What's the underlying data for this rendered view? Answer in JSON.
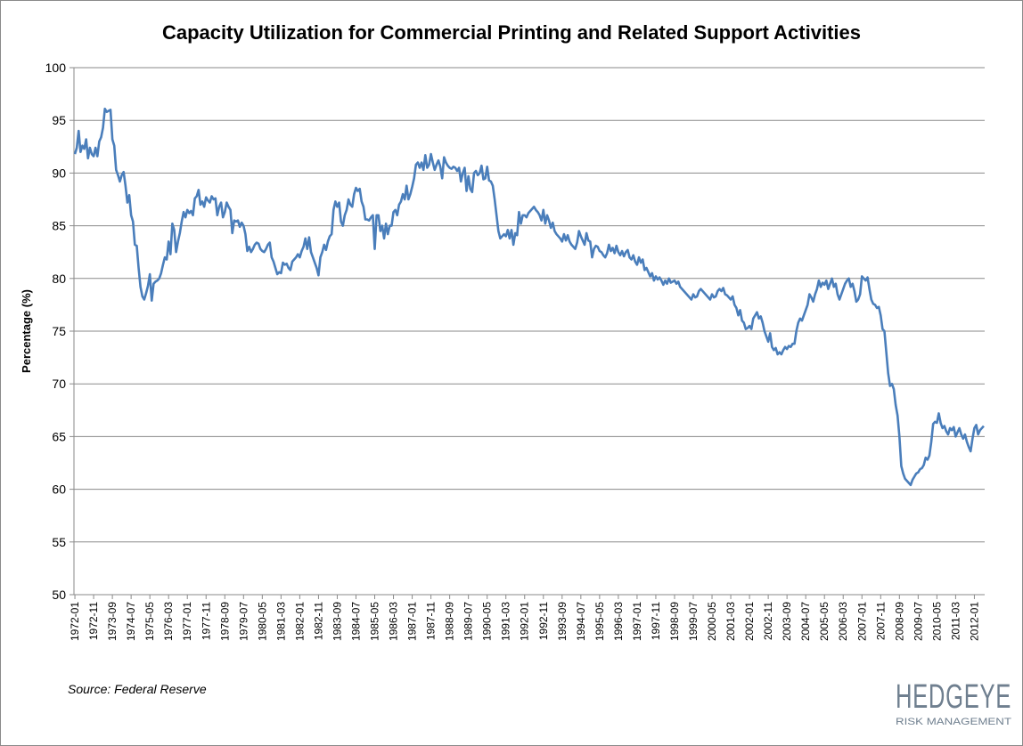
{
  "chart_data": {
    "type": "line",
    "title": "Capacity Utilization for Commercial Printing and Related Support Activities",
    "ylabel": "Percentage (%)",
    "source": "Source:  Federal Reserve",
    "logo": {
      "name": "HEDGEYE",
      "tagline": "RISK MANAGEMENT"
    },
    "ylim": [
      50,
      100
    ],
    "yticks": [
      50,
      55,
      60,
      65,
      70,
      75,
      80,
      85,
      90,
      95,
      100
    ],
    "grid": true,
    "categories": [
      "1972-01",
      null,
      null,
      null,
      null,
      null,
      null,
      null,
      null,
      null,
      "1972-11",
      null,
      null,
      null,
      null,
      null,
      null,
      null,
      null,
      null,
      "1973-09",
      null,
      null,
      null,
      null,
      null,
      null,
      null,
      null,
      null,
      "1974-07",
      null,
      null,
      null,
      null,
      null,
      null,
      null,
      null,
      null,
      "1975-05",
      null,
      null,
      null,
      null,
      null,
      null,
      null,
      null,
      null,
      "1976-03",
      null,
      null,
      null,
      null,
      null,
      null,
      null,
      null,
      null,
      "1977-01",
      null,
      null,
      null,
      null,
      null,
      null,
      null,
      null,
      null,
      "1977-11",
      null,
      null,
      null,
      null,
      null,
      null,
      null,
      null,
      null,
      "1978-09",
      null,
      null,
      null,
      null,
      null,
      null,
      null,
      null,
      null,
      "1979-07",
      null,
      null,
      null,
      null,
      null,
      null,
      null,
      null,
      null,
      "1980-05",
      null,
      null,
      null,
      null,
      null,
      null,
      null,
      null,
      null,
      "1981-03",
      null,
      null,
      null,
      null,
      null,
      null,
      null,
      null,
      null,
      "1982-01",
      null,
      null,
      null,
      null,
      null,
      null,
      null,
      null,
      null,
      "1982-11",
      null,
      null,
      null,
      null,
      null,
      null,
      null,
      null,
      null,
      "1983-09",
      null,
      null,
      null,
      null,
      null,
      null,
      null,
      null,
      null,
      "1984-07",
      null,
      null,
      null,
      null,
      null,
      null,
      null,
      null,
      null,
      "1985-05",
      null,
      null,
      null,
      null,
      null,
      null,
      null,
      null,
      null,
      "1986-03",
      null,
      null,
      null,
      null,
      null,
      null,
      null,
      null,
      null,
      "1987-01",
      null,
      null,
      null,
      null,
      null,
      null,
      null,
      null,
      null,
      "1987-11",
      null,
      null,
      null,
      null,
      null,
      null,
      null,
      null,
      null,
      "1988-09",
      null,
      null,
      null,
      null,
      null,
      null,
      null,
      null,
      null,
      "1989-07",
      null,
      null,
      null,
      null,
      null,
      null,
      null,
      null,
      null,
      "1990-05",
      null,
      null,
      null,
      null,
      null,
      null,
      null,
      null,
      null,
      "1991-03",
      null,
      null,
      null,
      null,
      null,
      null,
      null,
      null,
      null,
      "1992-01",
      null,
      null,
      null,
      null,
      null,
      null,
      null,
      null,
      null,
      "1992-11",
      null,
      null,
      null,
      null,
      null,
      null,
      null,
      null,
      null,
      "1993-09",
      null,
      null,
      null,
      null,
      null,
      null,
      null,
      null,
      null,
      "1994-07",
      null,
      null,
      null,
      null,
      null,
      null,
      null,
      null,
      null,
      "1995-05",
      null,
      null,
      null,
      null,
      null,
      null,
      null,
      null,
      null,
      "1996-03",
      null,
      null,
      null,
      null,
      null,
      null,
      null,
      null,
      null,
      "1997-01",
      null,
      null,
      null,
      null,
      null,
      null,
      null,
      null,
      null,
      "1997-11",
      null,
      null,
      null,
      null,
      null,
      null,
      null,
      null,
      null,
      "1998-09",
      null,
      null,
      null,
      null,
      null,
      null,
      null,
      null,
      null,
      "1999-07",
      null,
      null,
      null,
      null,
      null,
      null,
      null,
      null,
      null,
      "2000-05",
      null,
      null,
      null,
      null,
      null,
      null,
      null,
      null,
      null,
      "2001-03",
      null,
      null,
      null,
      null,
      null,
      null,
      null,
      null,
      null,
      "2002-01",
      null,
      null,
      null,
      null,
      null,
      null,
      null,
      null,
      null,
      "2002-11",
      null,
      null,
      null,
      null,
      null,
      null,
      null,
      null,
      null,
      "2003-09",
      null,
      null,
      null,
      null,
      null,
      null,
      null,
      null,
      null,
      "2004-07",
      null,
      null,
      null,
      null,
      null,
      null,
      null,
      null,
      null,
      "2005-05",
      null,
      null,
      null,
      null,
      null,
      null,
      null,
      null,
      null,
      "2006-03",
      null,
      null,
      null,
      null,
      null,
      null,
      null,
      null,
      null,
      "2007-01",
      null,
      null,
      null,
      null,
      null,
      null,
      null,
      null,
      null,
      "2007-11",
      null,
      null,
      null,
      null,
      null,
      null,
      null,
      null,
      null,
      "2008-09",
      null,
      null,
      null,
      null,
      null,
      null,
      null,
      null,
      null,
      "2009-07",
      null,
      null,
      null,
      null,
      null,
      null,
      null,
      null,
      null,
      "2010-05",
      null,
      null,
      null,
      null,
      null,
      null,
      null,
      null,
      null,
      "2011-03",
      null,
      null,
      null,
      null,
      null,
      null,
      null,
      null,
      null,
      "2012-01",
      null,
      null,
      null,
      null,
      null
    ],
    "series": [
      {
        "color": "#4a7ebb",
        "values": [
          91.8,
          92.4,
          94.0,
          92.0,
          92.6,
          92.3,
          93.2,
          91.4,
          92.4,
          91.8,
          91.6,
          92.4,
          91.6,
          93.0,
          93.4,
          94.3,
          96.1,
          95.8,
          95.9,
          96.0,
          93.2,
          92.6,
          90.3,
          89.8,
          89.2,
          89.8,
          90.1,
          88.8,
          87.2,
          87.9,
          86.0,
          85.4,
          83.2,
          83.1,
          81.0,
          79.2,
          78.3,
          78.0,
          78.6,
          79.3,
          80.4,
          77.9,
          79.5,
          79.7,
          79.8,
          80.0,
          80.5,
          81.3,
          82.0,
          81.8,
          83.5,
          82.3,
          85.2,
          84.6,
          82.5,
          83.5,
          84.3,
          85.4,
          86.3,
          85.8,
          86.5,
          86.2,
          86.4,
          86.0,
          87.6,
          87.8,
          88.4,
          87.0,
          87.3,
          86.8,
          87.7,
          87.4,
          87.2,
          87.8,
          87.5,
          87.6,
          86.0,
          86.8,
          87.2,
          85.8,
          86.3,
          87.2,
          86.8,
          86.5,
          84.3,
          85.5,
          85.4,
          85.5,
          84.9,
          85.3,
          85.0,
          84.2,
          82.6,
          83.0,
          82.5,
          82.8,
          83.2,
          83.4,
          83.3,
          82.8,
          82.6,
          82.5,
          82.8,
          83.2,
          83.4,
          82.0,
          81.6,
          81.0,
          80.4,
          80.6,
          80.5,
          81.5,
          81.3,
          81.4,
          81.0,
          80.8,
          81.6,
          81.8,
          82.0,
          82.3,
          82.0,
          82.6,
          83.0,
          83.8,
          82.8,
          83.9,
          82.5,
          82.0,
          81.5,
          81.0,
          80.3,
          82.0,
          82.5,
          83.2,
          82.7,
          83.5,
          84.0,
          84.2,
          86.5,
          87.3,
          86.8,
          87.2,
          85.4,
          85.0,
          86.0,
          86.5,
          87.5,
          87.0,
          86.8,
          88.0,
          88.6,
          88.3,
          88.5,
          87.3,
          86.8,
          85.6,
          85.6,
          85.5,
          85.8,
          86.0,
          82.8,
          86.0,
          86.0,
          84.5,
          85.0,
          83.8,
          85.2,
          84.2,
          85.0,
          85.0,
          86.3,
          86.5,
          86.0,
          87.0,
          87.3,
          88.0,
          87.5,
          88.8,
          87.5,
          88.0,
          88.7,
          89.5,
          90.8,
          91.0,
          90.5,
          91.0,
          90.3,
          91.7,
          90.5,
          90.8,
          91.8,
          91.0,
          90.3,
          90.8,
          91.2,
          90.6,
          89.5,
          91.5,
          91.0,
          90.7,
          90.5,
          90.4,
          90.6,
          90.5,
          90.2,
          90.5,
          89.2,
          90.0,
          90.5,
          88.3,
          89.7,
          88.5,
          88.2,
          90.0,
          90.2,
          89.8,
          90.0,
          90.7,
          89.4,
          89.5,
          90.6,
          89.3,
          89.2,
          88.8,
          87.5,
          86.0,
          84.5,
          83.8,
          84.0,
          84.2,
          84.0,
          84.6,
          83.8,
          84.6,
          83.2,
          84.3,
          84.1,
          86.3,
          85.2,
          86.0,
          86.0,
          85.8,
          86.2,
          86.4,
          86.6,
          86.8,
          86.5,
          86.3,
          86.0,
          85.5,
          86.5,
          85.2,
          86.0,
          85.5,
          84.8,
          85.3,
          84.5,
          84.2,
          84.0,
          83.8,
          83.5,
          84.2,
          83.6,
          84.1,
          83.5,
          83.2,
          83.0,
          82.8,
          83.4,
          84.5,
          84.0,
          83.6,
          83.2,
          84.3,
          83.6,
          83.5,
          82.0,
          82.8,
          83.1,
          83.0,
          82.6,
          82.5,
          82.2,
          82.0,
          82.4,
          83.2,
          82.6,
          82.9,
          82.4,
          83.1,
          82.5,
          82.2,
          82.6,
          82.1,
          82.5,
          82.7,
          82.0,
          81.8,
          82.2,
          81.6,
          81.3,
          82.0,
          81.5,
          81.8,
          80.8,
          81.0,
          80.6,
          80.2,
          80.5,
          79.8,
          80.2,
          79.9,
          80.1,
          79.8,
          79.4,
          79.8,
          79.5,
          80.0,
          79.6,
          79.7,
          79.8,
          79.5,
          79.7,
          79.2,
          79.0,
          78.8,
          78.6,
          78.4,
          78.2,
          78.0,
          78.5,
          78.2,
          78.3,
          78.8,
          79.0,
          78.8,
          78.6,
          78.4,
          78.2,
          78.0,
          78.5,
          78.2,
          78.3,
          78.8,
          79.0,
          78.8,
          79.1,
          78.5,
          78.4,
          78.2,
          78.0,
          78.3,
          77.5,
          77.2,
          76.5,
          77.0,
          76.0,
          75.8,
          75.2,
          75.3,
          75.5,
          75.2,
          76.2,
          76.5,
          76.8,
          76.2,
          76.4,
          75.8,
          75.0,
          74.5,
          74.0,
          74.8,
          73.5,
          73.2,
          73.4,
          72.8,
          73.0,
          72.8,
          73.2,
          73.5,
          73.3,
          73.6,
          73.5,
          73.8,
          73.8,
          75.0,
          75.8,
          76.2,
          76.0,
          76.5,
          77.0,
          77.5,
          78.5,
          78.2,
          77.8,
          78.5,
          79.0,
          79.8,
          79.2,
          79.6,
          79.4,
          79.8,
          79.0,
          79.5,
          80.0,
          79.2,
          79.5,
          78.5,
          78.0,
          78.5,
          79.0,
          79.5,
          79.8,
          80.0,
          79.2,
          79.5,
          78.8,
          77.8,
          78.0,
          78.5,
          80.2,
          80.0,
          79.8,
          80.1,
          79.0,
          78.0,
          77.6,
          77.5,
          77.2,
          77.3,
          76.5,
          75.2,
          75.0,
          73.0,
          71.0,
          69.8,
          70.0,
          69.5,
          68.0,
          67.0,
          65.0,
          62.2,
          61.5,
          61.0,
          60.8,
          60.6,
          60.4,
          60.9,
          61.2,
          61.5,
          61.6,
          61.9,
          62.0,
          62.3,
          63.0,
          62.8,
          63.2,
          64.5,
          66.2,
          66.4,
          66.3,
          67.2,
          66.3,
          65.8,
          66.0,
          65.5,
          65.2,
          65.8,
          65.6,
          65.9,
          65.0,
          65.4,
          65.8,
          65.2,
          64.8,
          65.2,
          64.5,
          64.0,
          63.6,
          64.8,
          65.8,
          66.1,
          65.2,
          65.6,
          65.8,
          66.0
        ]
      }
    ]
  }
}
